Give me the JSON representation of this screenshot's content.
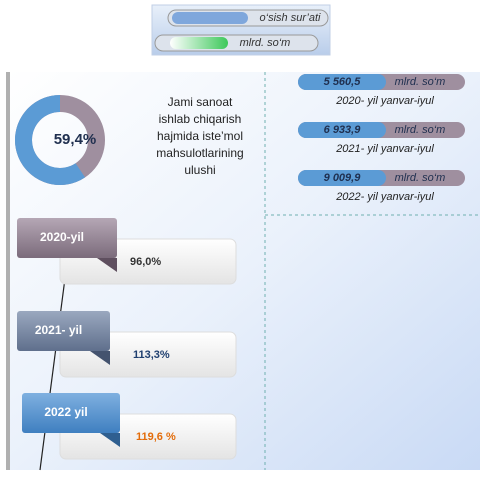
{
  "legend": [
    {
      "label": "o‘sish sur’ati"
    },
    {
      "label": "mlrd. so‘m"
    }
  ],
  "donut": {
    "value": 59.4,
    "value_label": "59,4%",
    "caption_lines": [
      "Jami sanoat",
      "ishlab chiqarish",
      "hajmida iste’mol",
      "mahsulotlarining",
      "ulushi"
    ]
  },
  "totals": [
    {
      "amount": "5 560,5",
      "unit": "mlrd. so‘m",
      "period": "2020- yil yanvar-iyul"
    },
    {
      "amount": "6 933,9",
      "unit": "mlrd. so‘m",
      "period": "2021- yil yanvar-iyul"
    },
    {
      "amount": "9 009,9",
      "unit": "mlrd. so‘m",
      "period": "2022- yil yanvar-iyul"
    }
  ],
  "growth": [
    {
      "year": "2020-yil",
      "rate": "96,0%"
    },
    {
      "year": "2021- yil",
      "rate": "113,3%"
    },
    {
      "year": "2022 yil",
      "rate": "119,6 %"
    }
  ]
}
